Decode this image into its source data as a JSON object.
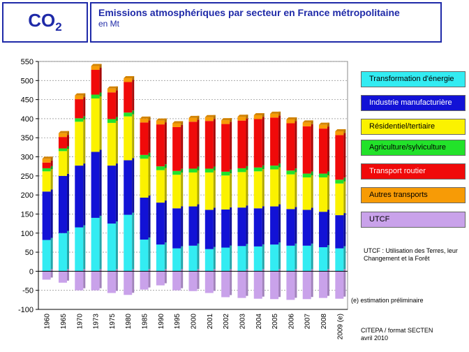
{
  "header": {
    "co2_main": "CO",
    "co2_sub": "2",
    "title": "Emissions atmosphériques par secteur en France métropolitaine",
    "subtitle": "en Mt"
  },
  "legend": [
    {
      "label": "Transformation d'énergie",
      "color": "#33ecf2"
    },
    {
      "label": "Industrie manufacturière",
      "color": "#1212d6"
    },
    {
      "label": "Résidentiel/tertiaire",
      "color": "#fbf200"
    },
    {
      "label": "Agriculture/sylviculture",
      "color": "#22e22a"
    },
    {
      "label": "Transport routier",
      "color": "#f00a0a"
    },
    {
      "label": "Autres transports",
      "color": "#f79b06"
    },
    {
      "label": "UTCF",
      "color": "#c9a2ea"
    }
  ],
  "notes": {
    "utcf": "UTCF : Utilisation des Terres, leur Changement et la Forêt",
    "estimation": "(e) estimation préliminaire",
    "source_line1": "CITEPA / format SECTEN",
    "source_line2": "avril 2010"
  },
  "chart_data": {
    "type": "bar",
    "stacked": true,
    "title": "Emissions atmosphériques par secteur en France métropolitaine",
    "ylabel": "en Mt",
    "ylim": [
      -100,
      550
    ],
    "yticks": [
      -100,
      -50,
      0,
      50,
      100,
      150,
      200,
      250,
      300,
      350,
      400,
      450,
      500,
      550
    ],
    "grid": true,
    "legend_position": "right",
    "categories": [
      "1960",
      "1965",
      "1970",
      "1973",
      "1975",
      "1980",
      "1985",
      "1990",
      "1995",
      "2000",
      "2001",
      "2002",
      "2003",
      "2004",
      "2005",
      "2006",
      "2007",
      "2008",
      "2009 (e)"
    ],
    "series": [
      {
        "name": "Transformation d'énergie",
        "color": "#33ecf2",
        "values": [
          82,
          100,
          115,
          140,
          125,
          148,
          83,
          70,
          60,
          67,
          58,
          62,
          66,
          65,
          70,
          67,
          67,
          63,
          60
        ]
      },
      {
        "name": "Industrie manufacturière",
        "color": "#1212d6",
        "values": [
          127,
          150,
          162,
          173,
          152,
          143,
          110,
          110,
          105,
          103,
          103,
          100,
          101,
          100,
          100,
          96,
          94,
          93,
          87
        ]
      },
      {
        "name": "Résidentiel/tertiaire",
        "color": "#fbf200",
        "values": [
          53,
          65,
          115,
          140,
          112,
          115,
          102,
          85,
          88,
          89,
          98,
          89,
          93,
          97,
          97,
          91,
          85,
          90,
          83
        ]
      },
      {
        "name": "Agriculture/sylviculture",
        "color": "#22e22a",
        "values": [
          8,
          7,
          9,
          10,
          10,
          10,
          10,
          10,
          10,
          10,
          10,
          10,
          10,
          10,
          10,
          10,
          10,
          10,
          10
        ]
      },
      {
        "name": "Transport routier",
        "color": "#f00a0a",
        "values": [
          15,
          30,
          50,
          65,
          70,
          80,
          85,
          110,
          115,
          123,
          125,
          125,
          125,
          127,
          126,
          124,
          124,
          118,
          117
        ]
      },
      {
        "name": "Autres transports",
        "color": "#f79b06",
        "values": [
          10,
          10,
          10,
          10,
          10,
          10,
          10,
          10,
          10,
          10,
          10,
          10,
          10,
          10,
          10,
          10,
          10,
          10,
          10
        ]
      },
      {
        "name": "UTCF",
        "color": "#c9a2ea",
        "values": [
          -22,
          -30,
          -50,
          -50,
          -57,
          -62,
          -48,
          -37,
          -50,
          -52,
          -57,
          -68,
          -70,
          -72,
          -73,
          -75,
          -73,
          -70,
          -72
        ]
      }
    ]
  }
}
